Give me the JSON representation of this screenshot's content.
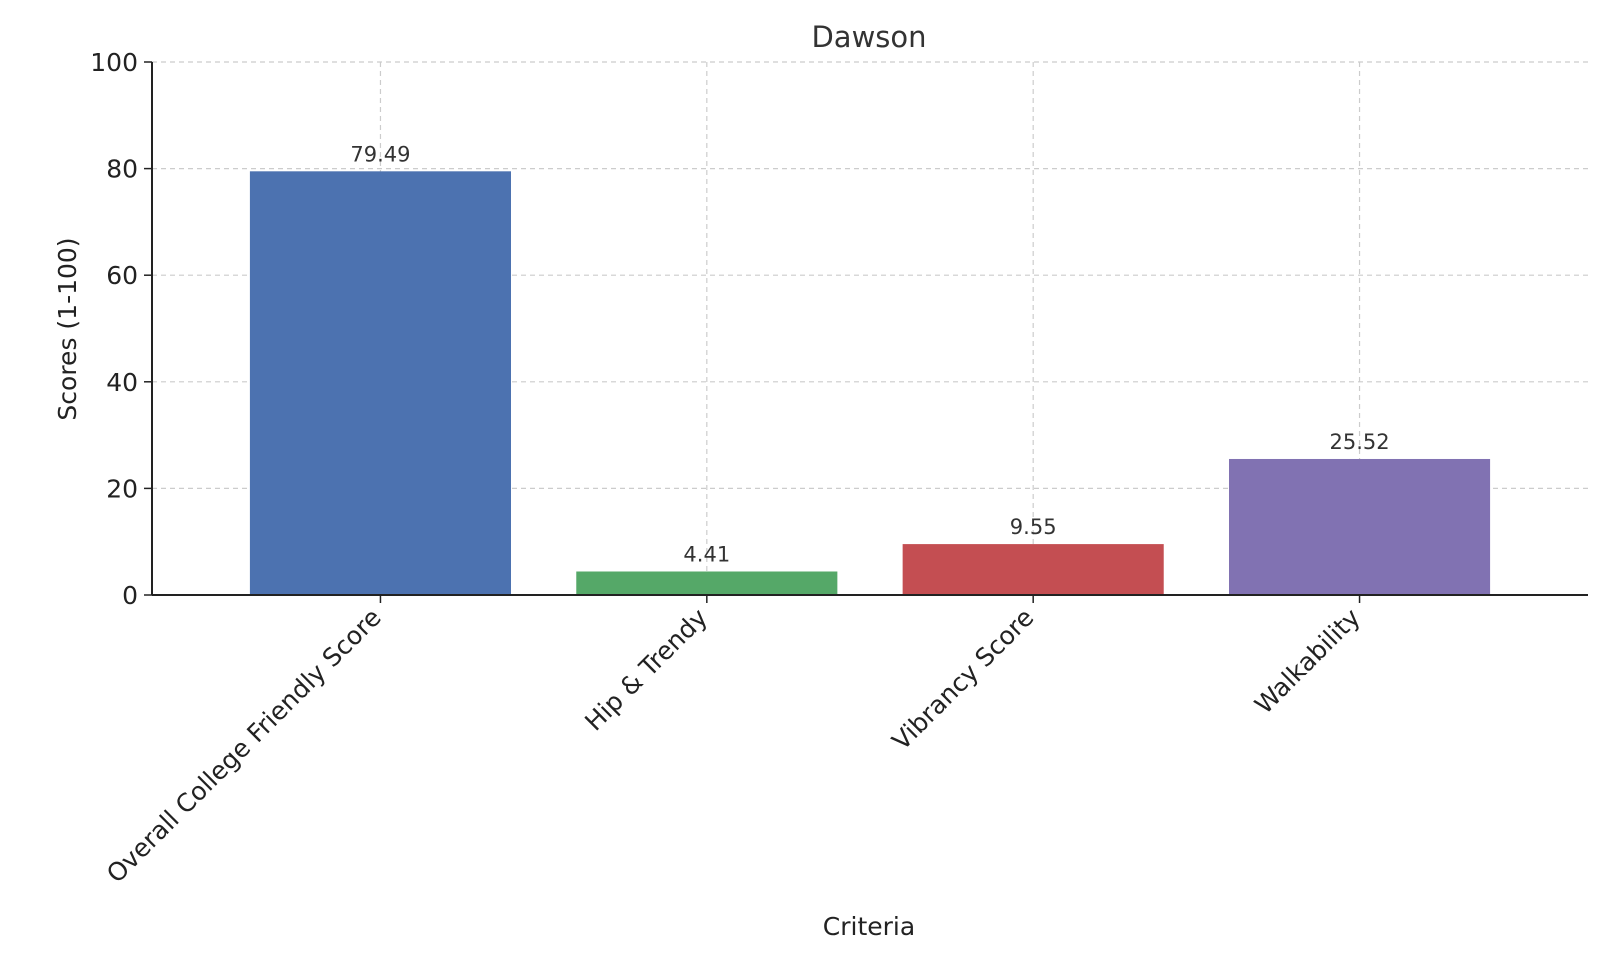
{
  "chart_data": {
    "type": "bar",
    "title": "Dawson",
    "xlabel": "Criteria",
    "ylabel": "Scores (1-100)",
    "ylim": [
      0,
      100
    ],
    "yticks": [
      0,
      20,
      40,
      60,
      80,
      100
    ],
    "grid": true,
    "categories": [
      "Overall College Friendly Score",
      "Hip & Trendy",
      "Vibrancy Score",
      "Walkability"
    ],
    "values": [
      79.49,
      4.41,
      9.55,
      25.52
    ],
    "value_labels": [
      "79.49",
      "4.41",
      "9.55",
      "25.52"
    ],
    "colors": [
      "#4c72b0",
      "#55a868",
      "#c44e52",
      "#8172b2"
    ]
  }
}
